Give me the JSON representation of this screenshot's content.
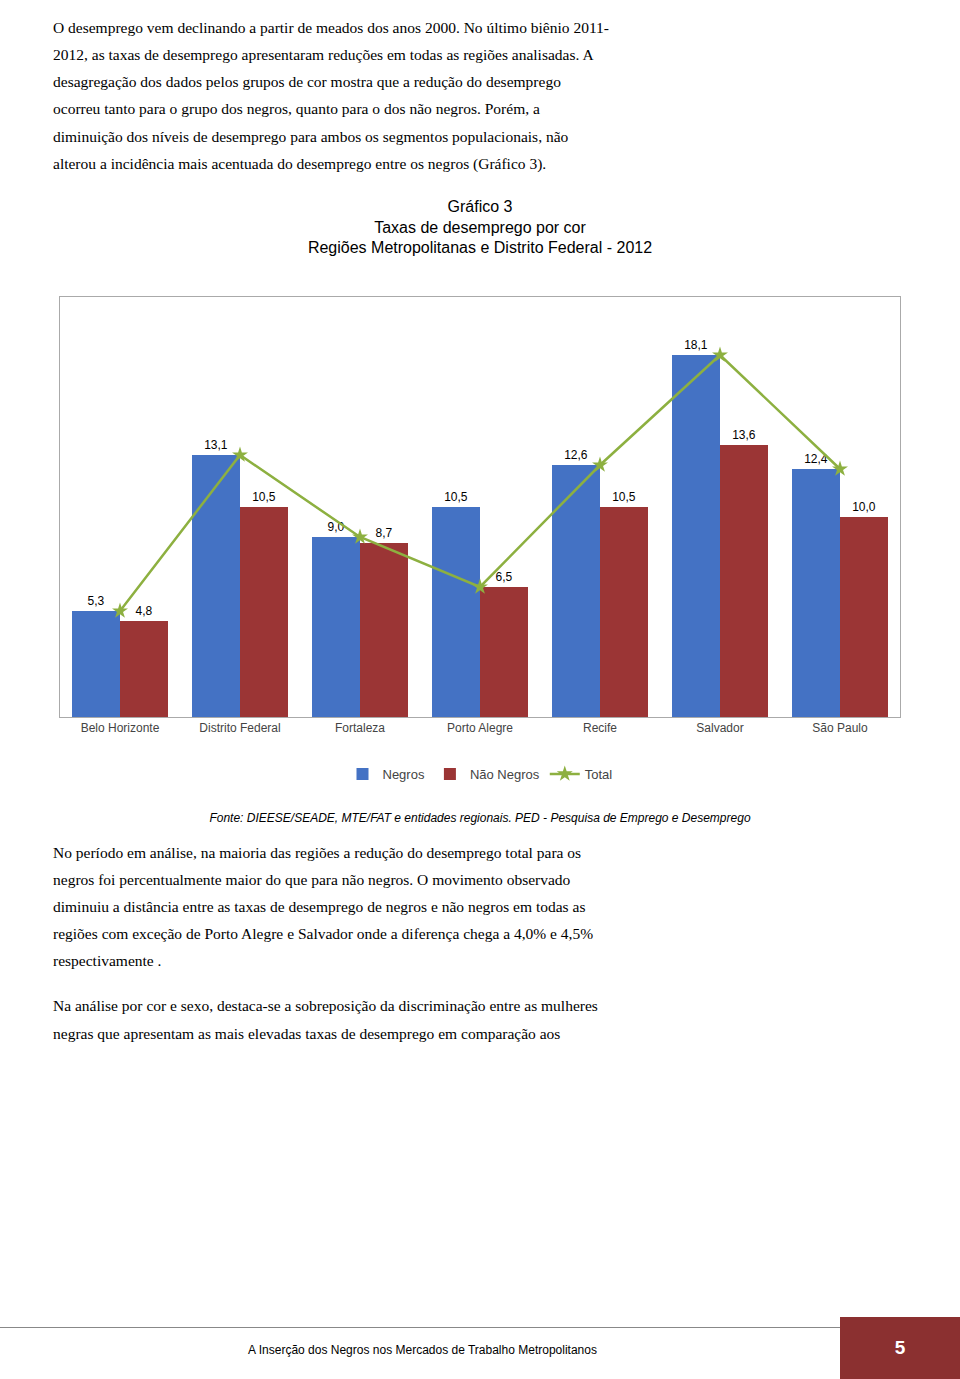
{
  "text_before": [
    "O desemprego vem declinando a partir de meados dos anos 2000. No último biênio 2011-",
    "2012, as taxas de desemprego apresentaram reduções em todas as regiões analisadas. A",
    "desagregação dos dados pelos grupos de cor mostra que a redução do desemprego",
    "ocorreu tanto para o grupo dos negros, quanto para o dos não negros. Porém, a",
    "diminuição dos níveis de desemprego para ambos os segmentos populacionais, não",
    "alterou a incidência mais acentuada do desemprego entre os negros (Gráfico 3)."
  ],
  "source": "Fonte:  DIEESE/SEADE, MTE/FAT e entidades regionais. PED - Pesquisa de Emprego e Desemprego",
  "text_after": [
    [
      "No período em análise, na maioria das regiões a redução do desemprego total para os",
      "negros foi percentualmente maior do que para não negros. O movimento observado",
      "diminuiu a distância entre as taxas de desemprego de negros e não negros em todas as",
      "regiões com exceção de Porto Alegre e Salvador onde a diferença chega a 4,0% e 4,5%",
      "respectivamente ."
    ],
    [
      "Na análise por cor e sexo, destaca-se a sobreposição da discriminação entre as mulheres",
      "negras que apresentam as mais elevadas taxas de desemprego em comparação aos"
    ]
  ],
  "footer": "A Inserção dos Negros nos Mercados de Trabalho Metropolitanos",
  "page_number": "5",
  "footer_color": "#8B3030",
  "chart_data": {
    "type": "bar",
    "title": "Gráfico 3\nTaxas de desemprego por cor\nRegiões Metropolitanas e Distrito Federal - 2012",
    "categories": [
      "Belo Horizonte",
      "Distrito Federal",
      "Fortaleza",
      "Porto Alegre",
      "Recife",
      "Salvador",
      "São Paulo"
    ],
    "series": [
      {
        "name": "Negros",
        "type": "bar",
        "color": "#4472C4",
        "values": [
          5.3,
          13.1,
          9.0,
          10.5,
          12.6,
          18.1,
          12.4
        ],
        "data_labels": true,
        "value_labels": [
          "5,3",
          "13,1",
          "9,0",
          "10,5",
          "12,6",
          "18,1",
          "12,4"
        ]
      },
      {
        "name": "Não Negros",
        "type": "bar",
        "color": "#9B3535",
        "values": [
          4.8,
          10.5,
          8.7,
          6.5,
          10.5,
          13.6,
          10.0
        ],
        "data_labels": true,
        "value_labels": [
          "4,8",
          "10,5",
          "8,7",
          "6,5",
          "10,5",
          "13,6",
          "10,0"
        ]
      },
      {
        "name": "Total",
        "type": "line",
        "color": "#8DB040",
        "marker": "star",
        "line_style": "solid",
        "values": [
          5.3,
          13.1,
          9.0,
          6.5,
          12.6,
          18.1,
          12.4
        ],
        "data_labels": false
      }
    ],
    "ylim": [
      0,
      21
    ],
    "tick_labels": "x",
    "grid": false,
    "legend": "bottom"
  }
}
